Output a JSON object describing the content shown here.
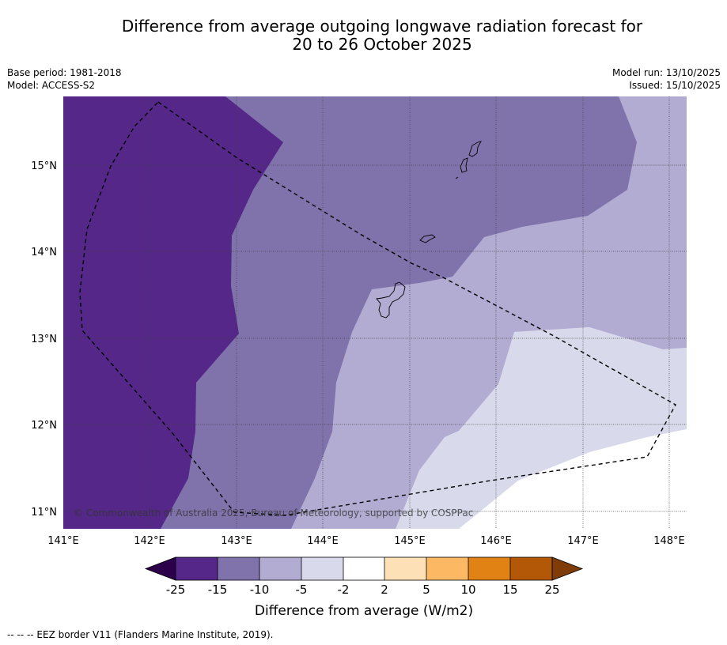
{
  "title": {
    "line1": "Difference from average outgoing longwave radiation forecast for",
    "line2": "20 to 26 October 2025"
  },
  "meta_left": {
    "base_period": "Base period: 1981-2018",
    "model": "Model: ACCESS-S2"
  },
  "meta_right": {
    "model_run": "Model run: 13/10/2025",
    "issued": "Issued: 15/10/2025"
  },
  "map": {
    "lat_labels": [
      "15°N",
      "14°N",
      "13°N",
      "12°N",
      "11°N"
    ],
    "lon_labels": [
      "141°E",
      "142°E",
      "143°E",
      "144°E",
      "145°E",
      "146°E",
      "147°E",
      "148°E"
    ],
    "copyright": "© Commonwealth of Australia 2025, Bureau of Meteorology, supported by COSPPac",
    "colors": {
      "below_25": "#2d004b",
      "m25_m15": "#542788",
      "m15_m10": "#8073ac",
      "m10_m5": "#b2abd2",
      "m5_m2": "#d8daeb",
      "m2_2": "#ffffff",
      "p2_5": "#fee0b6",
      "p5_10": "#fdb863",
      "p10_15": "#e08214",
      "p15_25": "#b35806",
      "above_25": "#7f3b08"
    }
  },
  "colorbar": {
    "ticks": [
      "-25",
      "-15",
      "-10",
      "-5",
      "-2",
      "2",
      "5",
      "10",
      "15",
      "25"
    ],
    "label": "Difference from average (W/m2)"
  },
  "footer": "--  --  -- EEZ border V11 (Flanders Marine Institute, 2019)."
}
